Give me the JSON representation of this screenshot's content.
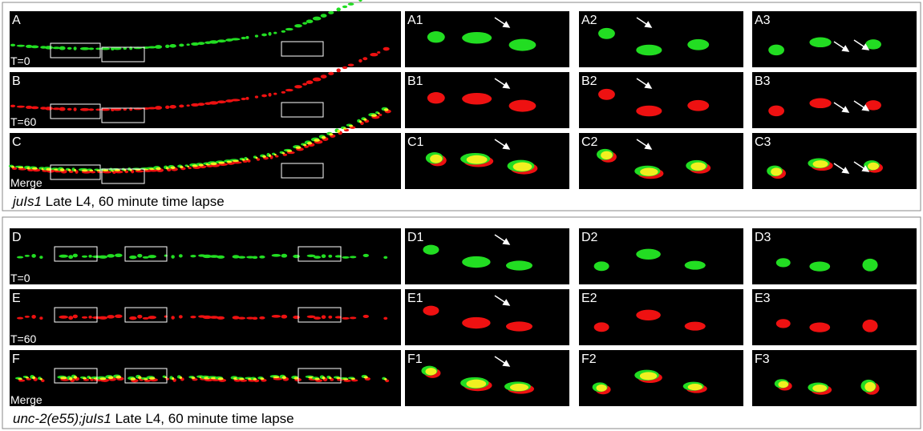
{
  "sections": [
    {
      "rows": [
        {
          "main": {
            "label": "A",
            "time": "T=0"
          },
          "insets": [
            "A1",
            "A2",
            "A3"
          ]
        },
        {
          "main": {
            "label": "B",
            "time": "T=60"
          },
          "insets": [
            "B1",
            "B2",
            "B3"
          ]
        },
        {
          "main": {
            "label": "C",
            "time": "Merge"
          },
          "insets": [
            "C1",
            "C2",
            "C3"
          ]
        }
      ],
      "caption": {
        "genotype": "juIs1",
        "text": "Late L4, 60 minute time lapse"
      }
    },
    {
      "rows": [
        {
          "main": {
            "label": "D",
            "time": "T=0"
          },
          "insets": [
            "D1",
            "D2",
            "D3"
          ]
        },
        {
          "main": {
            "label": "E",
            "time": "T=60"
          },
          "insets": [
            "E1",
            "E2",
            "E3"
          ]
        },
        {
          "main": {
            "label": "F",
            "time": "Merge"
          },
          "insets": [
            "F1",
            "F2",
            "F3"
          ]
        }
      ],
      "caption": {
        "genotype": "unc-2(e55);juIs1",
        "text": "Late L4, 60 minute time lapse"
      }
    }
  ]
}
